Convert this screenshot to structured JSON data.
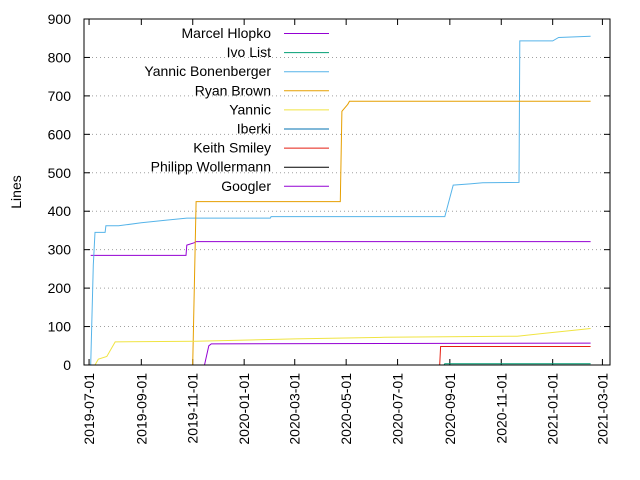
{
  "chart_data": {
    "type": "line",
    "title": "",
    "xlabel": "",
    "ylabel": "Lines",
    "ylim": [
      0,
      900
    ],
    "xlim": [
      "2019-06-25",
      "2021-03-10"
    ],
    "grid": "horizontal dotted at y ticks",
    "legend_position": "top-left",
    "y_ticks": [
      "0",
      "100",
      "200",
      "300",
      "400",
      "500",
      "600",
      "700",
      "800",
      "900"
    ],
    "x_ticks": [
      "2019-07-01",
      "2019-09-01",
      "2019-11-01",
      "2020-01-01",
      "2020-03-01",
      "2020-05-01",
      "2020-07-01",
      "2020-09-01",
      "2020-11-01",
      "2021-01-01",
      "2021-03-01"
    ],
    "series": [
      {
        "name": "Marcel Hlopko",
        "color": "#9400d3",
        "points": [
          [
            "2019-07-03",
            285
          ],
          [
            "2019-10-24",
            285
          ],
          [
            "2019-10-25",
            312
          ],
          [
            "2019-11-03",
            318
          ],
          [
            "2019-11-05",
            321
          ],
          [
            "2021-02-15",
            321
          ]
        ]
      },
      {
        "name": "Ivo List",
        "color": "#009e73",
        "points": [
          [
            "2020-08-25",
            0
          ],
          [
            "2020-08-26",
            3
          ],
          [
            "2021-02-15",
            3
          ]
        ]
      },
      {
        "name": "Yannic Bonenberger",
        "color": "#56b4e9",
        "points": [
          [
            "2019-07-03",
            0
          ],
          [
            "2019-07-06",
            260
          ],
          [
            "2019-07-08",
            345
          ],
          [
            "2019-07-20",
            345
          ],
          [
            "2019-07-21",
            362
          ],
          [
            "2019-08-05",
            362
          ],
          [
            "2019-09-01",
            370
          ],
          [
            "2019-10-01",
            377
          ],
          [
            "2019-10-25",
            382
          ],
          [
            "2020-02-01",
            382
          ],
          [
            "2020-02-02",
            386
          ],
          [
            "2020-08-26",
            386
          ],
          [
            "2020-09-05",
            468
          ],
          [
            "2020-09-25",
            471
          ],
          [
            "2020-10-10",
            474
          ],
          [
            "2020-11-22",
            475
          ],
          [
            "2020-11-23",
            843
          ],
          [
            "2020-12-10",
            843
          ],
          [
            "2021-01-01",
            843
          ],
          [
            "2021-01-08",
            852
          ],
          [
            "2021-02-15",
            855
          ]
        ]
      },
      {
        "name": "Ryan Brown",
        "color": "#e69f00",
        "points": [
          [
            "2019-11-01",
            0
          ],
          [
            "2019-11-05",
            425
          ],
          [
            "2020-04-24",
            425
          ],
          [
            "2020-04-26",
            660
          ],
          [
            "2020-05-03",
            678
          ],
          [
            "2020-05-05",
            686
          ],
          [
            "2021-02-15",
            686
          ]
        ]
      },
      {
        "name": "Yannic",
        "color": "#f0e442",
        "points": [
          [
            "2019-07-08",
            0
          ],
          [
            "2019-07-12",
            15
          ],
          [
            "2019-07-22",
            22
          ],
          [
            "2019-08-01",
            60
          ],
          [
            "2019-11-05",
            62
          ],
          [
            "2020-03-01",
            68
          ],
          [
            "2020-06-15",
            72
          ],
          [
            "2020-11-20",
            75
          ],
          [
            "2020-12-20",
            82
          ],
          [
            "2021-01-25",
            90
          ],
          [
            "2021-02-15",
            95
          ]
        ]
      },
      {
        "name": "Iberki",
        "color": "#0072b2",
        "points": [
          [
            "2019-11-15",
            0
          ],
          [
            "2021-02-15",
            0
          ]
        ]
      },
      {
        "name": "Keith Smiley",
        "color": "#e51e10",
        "points": [
          [
            "2020-07-15",
            0
          ],
          [
            "2020-08-20",
            0
          ],
          [
            "2020-08-21",
            48
          ],
          [
            "2021-02-15",
            48
          ]
        ]
      },
      {
        "name": "Philipp Wollermann",
        "color": "#000000",
        "points": [
          [
            "2019-11-10",
            0
          ],
          [
            "2021-02-15",
            0
          ]
        ]
      },
      {
        "name": "Googler",
        "color": "#9400d3",
        "points": [
          [
            "2019-11-15",
            0
          ],
          [
            "2019-11-20",
            50
          ],
          [
            "2019-11-23",
            55
          ],
          [
            "2021-02-15",
            57
          ]
        ]
      }
    ]
  }
}
